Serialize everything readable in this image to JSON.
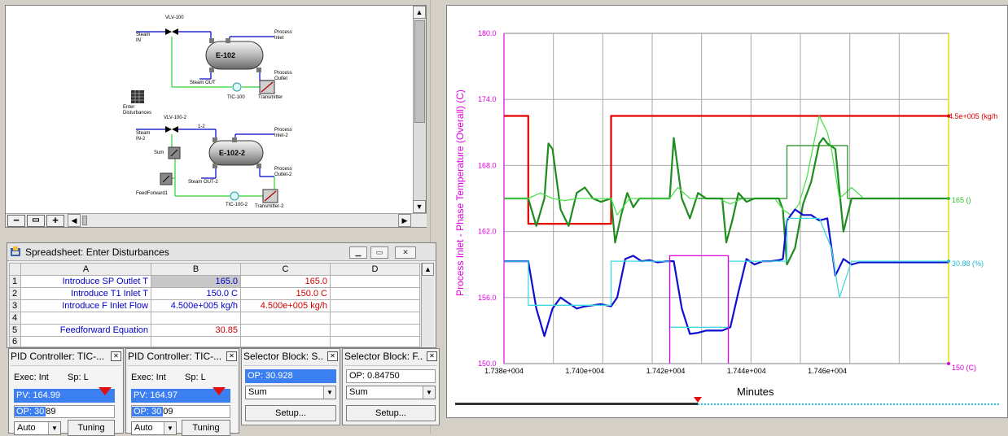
{
  "pfd": {
    "labels": {
      "vlv100": "VLV-100",
      "steam_in": "Steam IN",
      "e102": "E-102",
      "process_inlet": "Process Inlet",
      "process_outlet": "Process Outlet",
      "steam_out": "Steam OUT",
      "tic100": "TIC-100",
      "transmitter": "Transmitter",
      "enter_disturbances": "Enter Disturbances",
      "vlv100_2": "VLV-100-2",
      "steam_in2": "Steam IN-2",
      "one_2": "1-2",
      "process_inlet2": "Process Inlet-2",
      "sum": "Sum",
      "e102_2": "E-102-2",
      "process_outlet2": "Process Outlet-2",
      "steam_out2": "Steam OUT-2",
      "feedforward1": "FeedForward1",
      "tic100_2": "TIC-100-2",
      "transmitter2": "Transmitter-2"
    },
    "zoom_out": "−",
    "zoom_fit": "▭",
    "zoom_in": "+"
  },
  "spreadsheet": {
    "title": "Spreadsheet: Enter Disturbances",
    "columns": [
      "A",
      "B",
      "C",
      "D"
    ],
    "rows": [
      {
        "n": "1",
        "a": "Introduce SP Outlet T",
        "b": "165.0",
        "c": "165.0"
      },
      {
        "n": "2",
        "a": "Introduce T1 Inlet T",
        "b": "150.0 C",
        "c": "150.0 C"
      },
      {
        "n": "3",
        "a": "Introduce F Inlet Flow",
        "b": "4.500e+005 kg/h",
        "c": "4.500e+005 kg/h"
      },
      {
        "n": "4",
        "a": "",
        "b": "",
        "c": ""
      },
      {
        "n": "5",
        "a": "Feedforward Equation",
        "b": "30.85",
        "c": ""
      },
      {
        "n": "6",
        "a": "",
        "b": "",
        "c": ""
      }
    ]
  },
  "controllers": [
    {
      "title": "PID Controller: TIC-...",
      "exec": "Exec: Int",
      "sp": "Sp:  L",
      "pv": "PV: 164.99",
      "op_sel": "OP: 30",
      "op_rest": "89",
      "mode": "Auto",
      "tuning": "Tuning"
    },
    {
      "title": "PID Controller: TIC-...",
      "exec": "Exec: Int",
      "sp": "Sp:  L",
      "pv": "PV: 164.97",
      "op_sel": "OP: 30",
      "op_rest": "09",
      "mode": "Auto",
      "tuning": "Tuning"
    }
  ],
  "selectors": [
    {
      "title": "Selector Block: S...",
      "op": "OP: 30.928",
      "mode": "Sum",
      "setup": "Setup..."
    },
    {
      "title": "Selector Block: F...",
      "op": "OP: 0.84750",
      "mode": "Sum",
      "setup": "Setup..."
    }
  ],
  "trend": {
    "xlabel": "Minutes",
    "ylabel": "Process Inlet - Phase Temperature (Overall) (C)",
    "right_labels": {
      "red": "4.5e+005 (kg/h",
      "green": "165 ()",
      "cyan": "30.88 (%)",
      "bottom": "150 (C)"
    }
  },
  "chart_data": {
    "type": "line",
    "xlabel": "Minutes",
    "ylabel": "Process Inlet - Phase Temperature (Overall) (C)",
    "xlim": [
      17380,
      17490
    ],
    "ylim": [
      150.0,
      180.0
    ],
    "x_ticks": [
      "1.738e+004",
      "1.740e+004",
      "1.742e+004",
      "1.744e+004",
      "1.746e+004"
    ],
    "y_ticks": [
      "150.0",
      "156.0",
      "162.0",
      "168.0",
      "174.0",
      "180.0"
    ],
    "grid": true,
    "colors": {
      "red": "#e00000",
      "dark_green": "#1e8c1e",
      "light_green": "#50e050",
      "blue": "#1010d0",
      "cyan": "#40d8e0",
      "magenta": "#e000e0"
    },
    "series": [
      {
        "color_key": "red",
        "x": [
          17380,
          17386,
          17386,
          17406.5,
          17406.5,
          17490
        ],
        "y": [
          172.5,
          172.5,
          162.7,
          162.7,
          172.5,
          172.5
        ]
      },
      {
        "color_key": "dark_green",
        "x": [
          17380,
          17386,
          17388,
          17390,
          17391,
          17392,
          17394,
          17396,
          17398,
          17400,
          17402,
          17404,
          17406.5,
          17407.5,
          17409,
          17410.5,
          17412,
          17413.5,
          17415,
          17417,
          17419,
          17421,
          17422,
          17424,
          17426,
          17428,
          17430,
          17432,
          17434,
          17435,
          17436.5,
          17438,
          17440,
          17442,
          17444,
          17446,
          17448,
          17449,
          17450,
          17452,
          17454,
          17456,
          17458,
          17459,
          17460,
          17462,
          17464,
          17466,
          17490
        ],
        "y": [
          165.0,
          165.0,
          162.5,
          165.0,
          170.0,
          169.5,
          164.0,
          162.5,
          165.5,
          166.0,
          165.0,
          164.7,
          165.0,
          161.0,
          163.5,
          165.5,
          164.2,
          165.0,
          165.0,
          165.0,
          165.0,
          165.0,
          170.5,
          165.0,
          163.2,
          165.5,
          165.0,
          165.0,
          165.0,
          161.0,
          163.0,
          165.5,
          164.7,
          165.0,
          165.0,
          165.0,
          165.0,
          164.0,
          159.0,
          160.5,
          164.5,
          166.5,
          170.0,
          170.5,
          170.0,
          169.5,
          162.0,
          165.0,
          165.0
        ]
      },
      {
        "color_key": "light_green",
        "x": [
          17380,
          17386,
          17389,
          17392,
          17395,
          17398,
          17401,
          17406.5,
          17408,
          17411,
          17414,
          17418,
          17421,
          17423,
          17426,
          17429,
          17433,
          17436,
          17439,
          17442,
          17447,
          17449,
          17451,
          17453,
          17455,
          17458,
          17460,
          17461,
          17463,
          17466,
          17469,
          17490
        ],
        "y": [
          165.0,
          165.0,
          165.5,
          165.0,
          164.8,
          165.0,
          165.0,
          165.0,
          163.5,
          165.0,
          165.0,
          165.0,
          165.0,
          166.0,
          165.0,
          165.0,
          165.0,
          164.5,
          165.0,
          165.0,
          165.0,
          164.0,
          163.5,
          164.5,
          167.0,
          172.5,
          171.0,
          169.5,
          165.0,
          166.0,
          165.0,
          165.0
        ]
      },
      {
        "color_key": "dark_green",
        "x": [
          17428,
          17428,
          17435.5,
          17435.5,
          17450,
          17450,
          17465,
          17465,
          17490
        ],
        "y": [
          165.0,
          165.0,
          165.0,
          165.0,
          165.0,
          169.8,
          169.8,
          165.0,
          165.0
        ]
      },
      {
        "color_key": "blue",
        "x": [
          17380,
          17386,
          17388,
          17390,
          17392,
          17394,
          17396,
          17398,
          17400,
          17402,
          17404,
          17406.5,
          17408,
          17410,
          17412,
          17414,
          17416,
          17418,
          17420,
          17422,
          17424,
          17426,
          17428,
          17430,
          17432,
          17434,
          17436,
          17438,
          17440,
          17442,
          17444,
          17446,
          17448,
          17449,
          17450,
          17452,
          17454,
          17456,
          17458,
          17460,
          17462,
          17464,
          17466,
          17468,
          17490
        ],
        "y": [
          159.3,
          159.3,
          155.0,
          152.5,
          155.0,
          156.0,
          155.5,
          155.0,
          155.2,
          155.3,
          155.4,
          155.2,
          156.0,
          159.5,
          159.8,
          159.3,
          159.4,
          159.2,
          159.3,
          159.3,
          155.0,
          152.7,
          152.8,
          153.0,
          153.0,
          153.0,
          153.3,
          156.5,
          159.5,
          159.0,
          159.3,
          159.3,
          159.4,
          159.5,
          163.0,
          164.0,
          163.5,
          163.5,
          163.0,
          163.2,
          158.0,
          159.5,
          159.0,
          159.2,
          159.2
        ]
      },
      {
        "color_key": "cyan",
        "x": [
          17380,
          17386,
          17386,
          17406.5,
          17406.5,
          17421,
          17421,
          17435.5,
          17435.5,
          17450,
          17450,
          17458,
          17461,
          17463,
          17466,
          17490
        ],
        "y": [
          159.3,
          159.3,
          155.3,
          155.3,
          159.3,
          159.3,
          153.3,
          153.3,
          159.3,
          159.3,
          163.2,
          163.2,
          160.5,
          156.0,
          159.3,
          159.3
        ]
      },
      {
        "color_key": "magenta",
        "x": [
          17421,
          17421,
          17435.5,
          17435.5
        ],
        "y": [
          150.0,
          159.8,
          159.8,
          150.0
        ]
      }
    ]
  }
}
